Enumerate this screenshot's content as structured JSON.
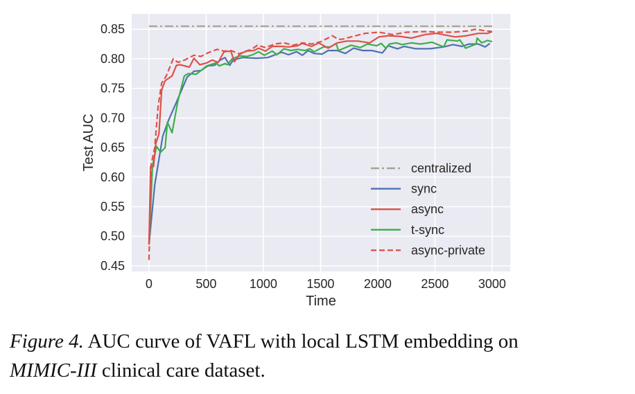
{
  "chart_data": {
    "type": "line",
    "title": "",
    "xlabel": "Time",
    "ylabel": "Test AUC",
    "xlim": [
      -151,
      3158
    ],
    "ylim": [
      0.4406,
      0.876
    ],
    "xticks": [
      0,
      500,
      1000,
      1500,
      2000,
      2500,
      3000
    ],
    "xtick_labels": [
      "0",
      "500",
      "1000",
      "1500",
      "2000",
      "2500",
      "3000"
    ],
    "yticks": [
      0.45,
      0.5,
      0.55,
      0.6,
      0.65,
      0.7,
      0.75,
      0.8,
      0.85
    ],
    "ytick_labels": [
      "0.45",
      "0.50",
      "0.55",
      "0.60",
      "0.65",
      "0.70",
      "0.75",
      "0.80",
      "0.85"
    ],
    "grid": true,
    "background": "#eaeaf2",
    "legend_position": "lower-right",
    "series": [
      {
        "name": "centralized",
        "color": "#a8a495",
        "style": "dashdot",
        "x": [
          0,
          3000
        ],
        "y": [
          0.855,
          0.855
        ]
      },
      {
        "name": "sync",
        "color": "#4c72b0",
        "style": "solid",
        "x": [
          0,
          50,
          120,
          171,
          252,
          333,
          393,
          454,
          514,
          573,
          625,
          665,
          706,
          736,
          817,
          938,
          1038,
          1159,
          1220,
          1290,
          1341,
          1391,
          1444,
          1515,
          1566,
          1646,
          1717,
          1788,
          1869,
          1949,
          2040,
          2091,
          2172,
          2232,
          2333,
          2455,
          2576,
          2657,
          2737,
          2798,
          2879,
          2939,
          2980
        ],
        "y": [
          0.486,
          0.587,
          0.669,
          0.696,
          0.732,
          0.769,
          0.779,
          0.78,
          0.788,
          0.789,
          0.798,
          0.802,
          0.789,
          0.798,
          0.802,
          0.801,
          0.802,
          0.811,
          0.807,
          0.812,
          0.806,
          0.814,
          0.809,
          0.808,
          0.814,
          0.814,
          0.809,
          0.818,
          0.814,
          0.814,
          0.81,
          0.822,
          0.817,
          0.821,
          0.817,
          0.817,
          0.82,
          0.824,
          0.821,
          0.825,
          0.825,
          0.82,
          0.826
        ]
      },
      {
        "name": "async",
        "color": "#dd5149",
        "style": "solid",
        "x": [
          0,
          14,
          40,
          60,
          87,
          111,
          141,
          202,
          240,
          272,
          353,
          393,
          444,
          504,
          554,
          605,
          656,
          716,
          746,
          796,
          857,
          917,
          958,
          1018,
          1078,
          1159,
          1220,
          1300,
          1341,
          1421,
          1485,
          1566,
          1646,
          1727,
          1828,
          1929,
          2010,
          2091,
          2192,
          2293,
          2414,
          2515,
          2596,
          2677,
          2778,
          2879,
          2960,
          3000
        ],
        "y": [
          0.486,
          0.618,
          0.618,
          0.657,
          0.673,
          0.747,
          0.763,
          0.771,
          0.789,
          0.79,
          0.786,
          0.801,
          0.79,
          0.793,
          0.798,
          0.794,
          0.812,
          0.813,
          0.795,
          0.809,
          0.813,
          0.814,
          0.818,
          0.813,
          0.821,
          0.821,
          0.82,
          0.822,
          0.826,
          0.821,
          0.827,
          0.818,
          0.827,
          0.83,
          0.83,
          0.827,
          0.837,
          0.839,
          0.838,
          0.835,
          0.841,
          0.843,
          0.84,
          0.837,
          0.839,
          0.843,
          0.843,
          0.846
        ]
      },
      {
        "name": "t-sync",
        "color": "#3cae4a",
        "style": "solid",
        "x": [
          0,
          30,
          66,
          101,
          141,
          161,
          202,
          252,
          309,
          343,
          413,
          454,
          504,
          585,
          615,
          665,
          686,
          726,
          796,
          857,
          907,
          958,
          1008,
          1078,
          1119,
          1179,
          1240,
          1300,
          1364,
          1404,
          1444,
          1525,
          1586,
          1636,
          1656,
          1768,
          1848,
          1909,
          1990,
          2030,
          2071,
          2101,
          2162,
          2212,
          2293,
          2374,
          2475,
          2576,
          2606,
          2697,
          2717,
          2768,
          2859,
          2869,
          2909,
          2960,
          3000
        ],
        "y": [
          0.486,
          0.618,
          0.652,
          0.642,
          0.65,
          0.693,
          0.675,
          0.728,
          0.771,
          0.775,
          0.774,
          0.78,
          0.788,
          0.793,
          0.788,
          0.792,
          0.79,
          0.8,
          0.805,
          0.804,
          0.807,
          0.812,
          0.806,
          0.813,
          0.807,
          0.817,
          0.814,
          0.816,
          0.814,
          0.817,
          0.812,
          0.82,
          0.82,
          0.826,
          0.814,
          0.823,
          0.819,
          0.825,
          0.822,
          0.826,
          0.818,
          0.825,
          0.827,
          0.824,
          0.827,
          0.825,
          0.828,
          0.82,
          0.832,
          0.83,
          0.832,
          0.818,
          0.825,
          0.835,
          0.827,
          0.831,
          0.829
        ]
      },
      {
        "name": "async-private",
        "color": "#dd5149",
        "style": "dashed",
        "x": [
          0,
          20,
          50,
          80,
          111,
          151,
          212,
          252,
          313,
          393,
          454,
          514,
          595,
          656,
          716,
          796,
          847,
          897,
          948,
          1018,
          1099,
          1179,
          1260,
          1341,
          1421,
          1502,
          1603,
          1653,
          1687,
          1768,
          1889,
          2010,
          2131,
          2253,
          2414,
          2535,
          2657,
          2778,
          2859,
          2919,
          3000
        ],
        "y": [
          0.46,
          0.622,
          0.65,
          0.72,
          0.759,
          0.771,
          0.8,
          0.794,
          0.798,
          0.806,
          0.804,
          0.81,
          0.816,
          0.813,
          0.814,
          0.808,
          0.813,
          0.816,
          0.823,
          0.819,
          0.825,
          0.827,
          0.823,
          0.827,
          0.825,
          0.829,
          0.839,
          0.833,
          0.833,
          0.837,
          0.843,
          0.845,
          0.841,
          0.845,
          0.846,
          0.845,
          0.845,
          0.847,
          0.85,
          0.848,
          0.846
        ]
      }
    ]
  },
  "caption": {
    "label": "Figure 4.",
    "text1": " AUC curve of VAFL with local LSTM embedding on",
    "italic2": "MIMIC-III",
    "text2": " clinical care dataset."
  }
}
